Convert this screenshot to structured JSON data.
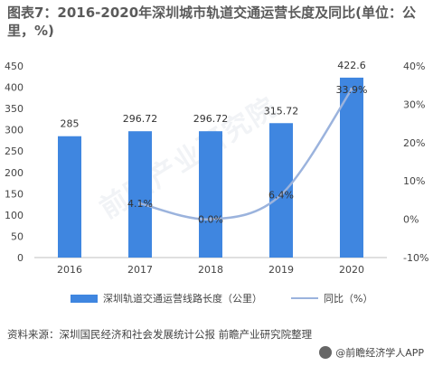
{
  "title": "图表7：2016-2020年深圳城市轨道交通运营长度及同比(单位：公里，%)",
  "chart_data": {
    "type": "bar",
    "categories": [
      "2016",
      "2017",
      "2018",
      "2019",
      "2020"
    ],
    "series": [
      {
        "name": "深圳轨道交通运营线路长度（公里）",
        "type": "bar",
        "axis": "left",
        "values": [
          285,
          296.72,
          296.72,
          315.72,
          422.6
        ],
        "labels": [
          "285",
          "296.72",
          "296.72",
          "315.72",
          "422.6"
        ]
      },
      {
        "name": "同比（%）",
        "type": "line",
        "axis": "right",
        "smooth": true,
        "values": [
          null,
          4.1,
          0.0,
          6.4,
          33.9
        ],
        "labels": [
          "",
          "4.1%",
          "0.0%",
          "6.4%",
          "33.9%"
        ]
      }
    ],
    "y_left": {
      "min": 0,
      "max": 450,
      "ticks": [
        "0",
        "50",
        "100",
        "150",
        "200",
        "250",
        "300",
        "350",
        "400",
        "450"
      ]
    },
    "y_right": {
      "min": -10,
      "max": 40,
      "ticks": [
        "-10%",
        "0%",
        "10%",
        "20%",
        "30%",
        "40%"
      ]
    },
    "colors": {
      "bar": "#3f86e0",
      "line": "#9bb3dd"
    },
    "legend_position": "bottom"
  },
  "source": "资料来源：深圳国民经济和社会发展统计公报 前瞻产业研究院整理",
  "brand": "@前瞻经济学人APP",
  "watermark": "前瞻产业研究院"
}
